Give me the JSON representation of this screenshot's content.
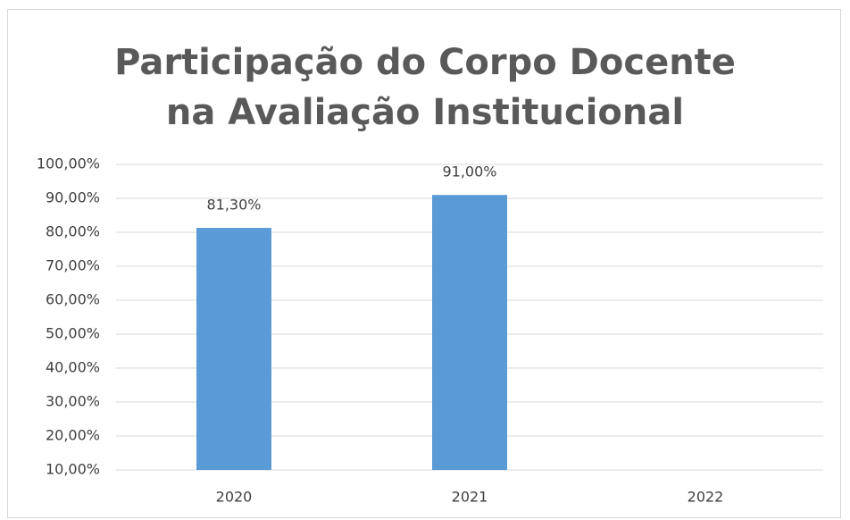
{
  "chart_data": {
    "type": "bar",
    "title": "Participação do Corpo Docente na Avaliação Institucional",
    "categories": [
      "2020",
      "2021",
      "2022"
    ],
    "values": [
      81.3,
      91.0,
      null
    ],
    "value_labels": [
      "81,30%",
      "91,00%",
      null
    ],
    "color": "#5b9bd5",
    "ylim": [
      10,
      100
    ],
    "yticks": [
      {
        "value": 10,
        "label": "10,00%"
      },
      {
        "value": 20,
        "label": "20,00%"
      },
      {
        "value": 30,
        "label": "30,00%"
      },
      {
        "value": 40,
        "label": "40,00%"
      },
      {
        "value": 50,
        "label": "50,00%"
      },
      {
        "value": 60,
        "label": "60,00%"
      },
      {
        "value": 70,
        "label": "70,00%"
      },
      {
        "value": 80,
        "label": "80,00%"
      },
      {
        "value": 90,
        "label": "90,00%"
      },
      {
        "value": 100,
        "label": "100,00%"
      }
    ],
    "grid": true
  }
}
